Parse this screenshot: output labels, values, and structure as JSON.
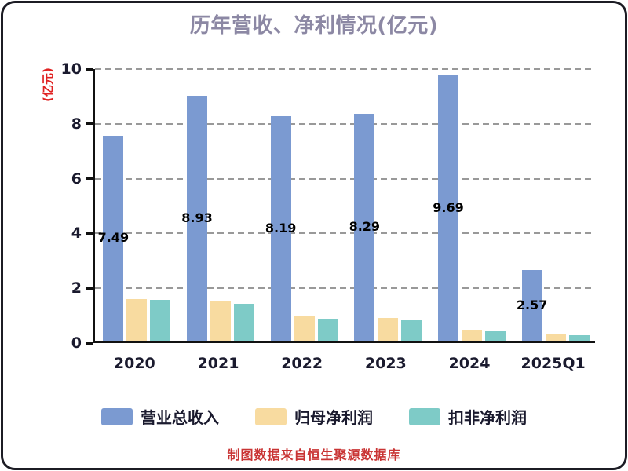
{
  "title": "历年营收、净利情况(亿元)",
  "y_axis_label": "(亿元)",
  "footer": "制图数据来自恒生聚源数据库",
  "colors": {
    "revenue_bar": "#7B9AD1",
    "net_profit_bar": "#F8DBA0",
    "deducted_net_profit_bar": "#7ECBC7",
    "title_text": "#8C88A4",
    "axis_text": "#1A1A2E",
    "unit_label_text": "#E02222",
    "footer_text": "#C93434"
  },
  "chart_data": {
    "type": "bar",
    "title": "历年营收、净利情况(亿元)",
    "ylabel": "(亿元)",
    "ylim": [
      0,
      10
    ],
    "yticks": [
      0,
      2,
      4,
      6,
      8,
      10
    ],
    "grid": "horizontal-dashed",
    "legend_position": "bottom",
    "categories": [
      "2020",
      "2021",
      "2022",
      "2023",
      "2024",
      "2025Q1"
    ],
    "series": [
      {
        "name": "营业总收入",
        "color": "#7B9AD1",
        "values": [
          7.49,
          8.93,
          8.19,
          8.29,
          9.69,
          2.57
        ],
        "value_labels": [
          "7.49",
          "8.93",
          "8.19",
          "8.29",
          "9.69",
          "2.57"
        ]
      },
      {
        "name": "归母净利润",
        "color": "#F8DBA0",
        "values": [
          1.52,
          1.43,
          0.88,
          0.83,
          0.36,
          0.24
        ]
      },
      {
        "name": "扣非净利润",
        "color": "#7ECBC7",
        "values": [
          1.5,
          1.36,
          0.8,
          0.74,
          0.33,
          0.2
        ]
      }
    ]
  }
}
